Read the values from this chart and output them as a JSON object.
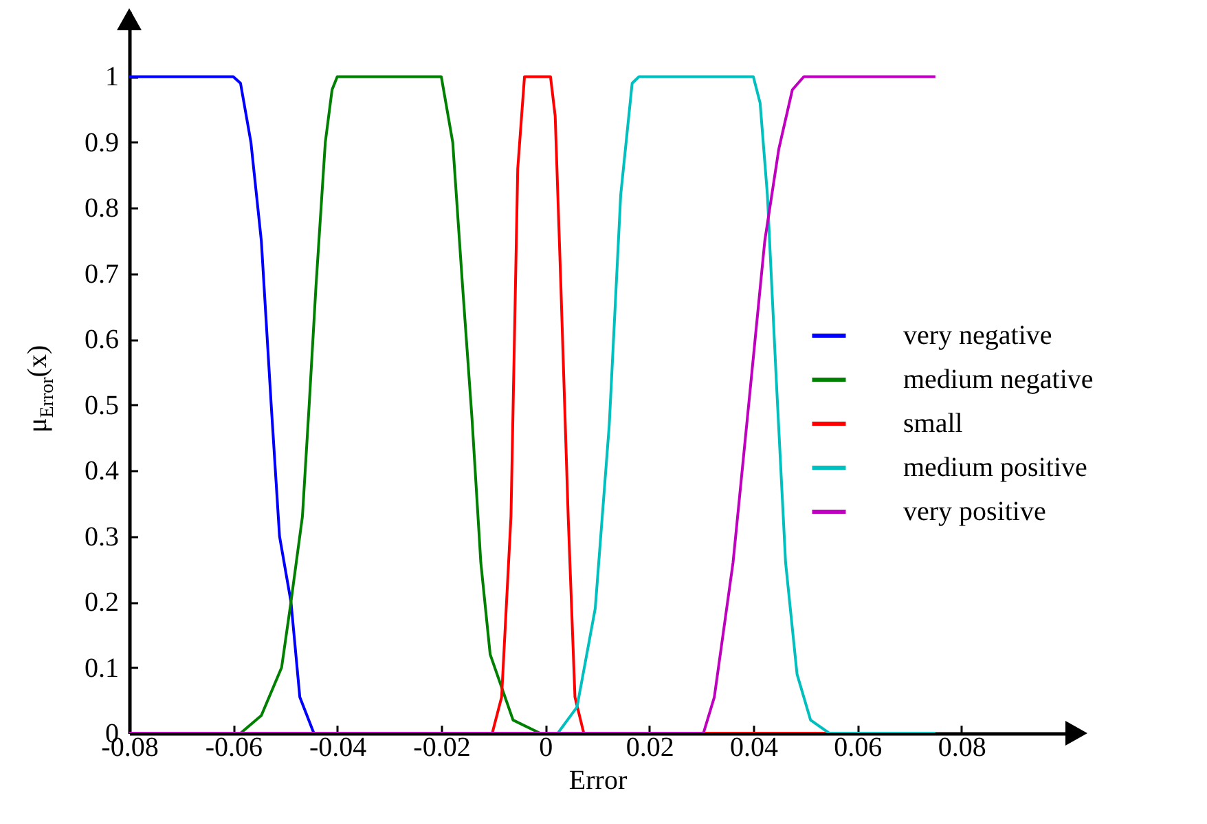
{
  "chart_data": {
    "type": "line",
    "xlabel": "Error",
    "ylabel": "μ$_{Error}$(x)",
    "xlim": [
      -0.08,
      0.1
    ],
    "ylim": [
      0,
      1.1
    ],
    "xticks": [
      -0.08,
      -0.06,
      -0.04,
      -0.02,
      0,
      0.02,
      0.04,
      0.06,
      0.08
    ],
    "yticks": [
      0,
      0.1,
      0.2,
      0.3,
      0.4,
      0.5,
      0.6,
      0.7,
      0.8,
      0.9,
      1
    ],
    "grid": false,
    "legend": "right",
    "line_style": "solid",
    "series": [
      {
        "name": "very negative",
        "color": "#0000ff",
        "x": [
          -0.08,
          -0.06,
          -0.0586,
          -0.0566,
          -0.0546,
          -0.0527,
          -0.0511,
          -0.0489,
          -0.0472,
          -0.0445,
          0.075
        ],
        "values": [
          1,
          1,
          0.99,
          0.9,
          0.75,
          0.5,
          0.3,
          0.2,
          0.055,
          0,
          0
        ]
      },
      {
        "name": "medium negative",
        "color": "#008000",
        "x": [
          -0.08,
          -0.0586,
          -0.0546,
          -0.0507,
          -0.0489,
          -0.0467,
          -0.0454,
          -0.0441,
          -0.0423,
          -0.041,
          -0.04,
          -0.02,
          -0.0178,
          -0.0159,
          -0.0141,
          -0.0124,
          -0.0106,
          -0.0062,
          -0.001,
          0.075
        ],
        "values": [
          0,
          0,
          0.027,
          0.1,
          0.2,
          0.33,
          0.5,
          0.68,
          0.9,
          0.98,
          1,
          1,
          0.9,
          0.68,
          0.48,
          0.26,
          0.12,
          0.02,
          0,
          0
        ]
      },
      {
        "name": "small",
        "color": "#ff0000",
        "x": [
          -0.08,
          -0.0102,
          -0.0084,
          -0.0066,
          -0.0053,
          -0.004,
          0.001,
          0.0019,
          0.003,
          0.0044,
          0.0057,
          0.0074,
          0.075
        ],
        "values": [
          0,
          0,
          0.055,
          0.33,
          0.86,
          1,
          1,
          0.94,
          0.68,
          0.33,
          0.055,
          0,
          0
        ]
      },
      {
        "name": "medium positive",
        "color": "#00bfbf",
        "x": [
          -0.08,
          0.0024,
          0.0061,
          0.0096,
          0.0123,
          0.0145,
          0.0167,
          0.018,
          0.04,
          0.0413,
          0.0427,
          0.0444,
          0.0462,
          0.0484,
          0.051,
          0.0546,
          0.075
        ],
        "values": [
          0,
          0,
          0.04,
          0.19,
          0.47,
          0.82,
          0.99,
          1,
          1,
          0.96,
          0.82,
          0.54,
          0.26,
          0.09,
          0.02,
          0,
          0
        ]
      },
      {
        "name": "very positive",
        "color": "#bf00bf",
        "x": [
          -0.08,
          0.0304,
          0.0325,
          0.0361,
          0.0396,
          0.0422,
          0.0449,
          0.0475,
          0.0497,
          0.075
        ],
        "values": [
          0,
          0,
          0.055,
          0.26,
          0.54,
          0.75,
          0.89,
          0.98,
          1,
          1
        ]
      }
    ]
  }
}
